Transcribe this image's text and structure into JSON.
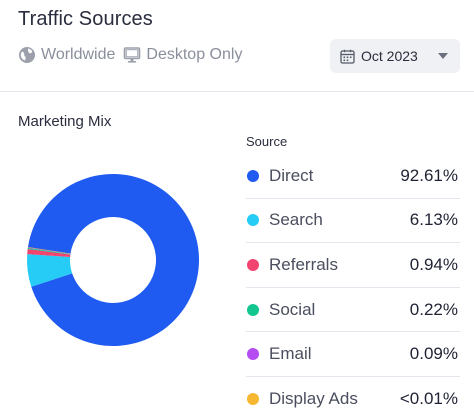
{
  "header": {
    "title": "Traffic Sources",
    "region_label": "Worldwide",
    "device_label": "Desktop Only",
    "date_label": "Oct 2023"
  },
  "section": {
    "title": "Marketing Mix",
    "legend_header": "Source"
  },
  "icons": {
    "region": "globe-icon",
    "device": "monitor-icon",
    "date": "calendar-icon",
    "dropdown": "chevron-down-icon"
  },
  "chart_data": {
    "type": "pie",
    "title": "Marketing Mix",
    "donut": true,
    "series": [
      {
        "name": "Direct",
        "value": 92.61,
        "label": "92.61%",
        "color": "#1f5bf1"
      },
      {
        "name": "Search",
        "value": 6.13,
        "label": "6.13%",
        "color": "#26ccf5"
      },
      {
        "name": "Referrals",
        "value": 0.94,
        "label": "0.94%",
        "color": "#f2446f"
      },
      {
        "name": "Social",
        "value": 0.22,
        "label": "0.22%",
        "color": "#13c68f"
      },
      {
        "name": "Email",
        "value": 0.09,
        "label": "0.09%",
        "color": "#b44cf2"
      },
      {
        "name": "Display Ads",
        "value": 0.01,
        "label": "<0.01%",
        "color": "#f7b731"
      }
    ],
    "legend_position": "right"
  }
}
